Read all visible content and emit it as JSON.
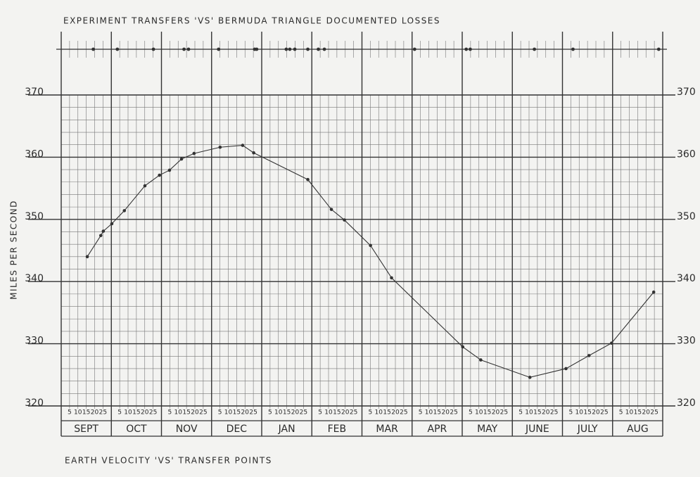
{
  "chart_data": {
    "type": "line",
    "title": "EXPERIMENT TRANSFERS 'VS' BERMUDA TRIANGLE DOCUMENTED LOSSES",
    "xlabel": "EARTH VELOCITY 'VS' TRANSFER POINTS",
    "ylabel": "MILES PER SECOND",
    "categories": [
      "SEPT",
      "OCT",
      "NOV",
      "DEC",
      "JAN",
      "FEB",
      "MAR",
      "APR",
      "MAY",
      "JUNE",
      "JULY",
      "AUG"
    ],
    "day_ticks": [
      5,
      10,
      15,
      20,
      25
    ],
    "x": [
      0.52,
      0.79,
      0.84,
      1.01,
      1.26,
      1.67,
      1.96,
      2.16,
      2.4,
      2.65,
      3.17,
      3.62,
      3.84,
      4.92,
      5.39,
      5.65,
      6.17,
      6.59,
      8.01,
      8.37,
      9.35,
      10.07,
      10.53,
      10.98,
      11.82
    ],
    "values": [
      344.0,
      347.4,
      348.1,
      349.3,
      351.4,
      355.4,
      357.1,
      357.9,
      359.7,
      360.6,
      361.6,
      361.9,
      360.7,
      356.4,
      351.6,
      349.9,
      345.8,
      340.6,
      329.5,
      327.4,
      324.6,
      326.0,
      328.1,
      330.1,
      338.3
    ],
    "transfer_points": [
      0.64,
      1.12,
      1.84,
      2.45,
      2.54,
      3.14,
      3.86,
      3.9,
      4.49,
      4.56,
      4.66,
      4.92,
      5.13,
      5.25,
      7.05,
      8.08,
      8.16,
      9.44,
      10.21,
      11.92
    ],
    "xlim": [
      0,
      12
    ],
    "ylim": [
      320,
      370
    ],
    "yticks": [
      320,
      330,
      340,
      350,
      360,
      370
    ],
    "color": "#333333",
    "grid": true
  }
}
